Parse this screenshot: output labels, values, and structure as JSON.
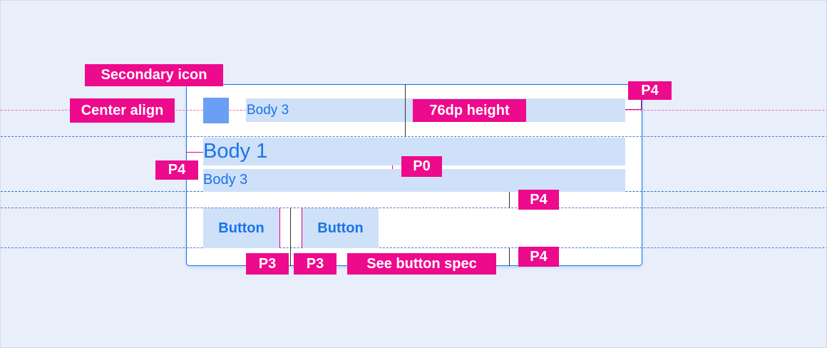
{
  "card": {
    "header_text": "Body 3",
    "title": "Body 1",
    "subtitle": "Body 3",
    "buttons": [
      "Button",
      "Button"
    ]
  },
  "annotations": {
    "secondary_icon": "Secondary icon",
    "center_align": "Center align",
    "height": "76dp height",
    "p4_top": "P4",
    "p4_left": "P4",
    "p0": "P0",
    "p4_mid": "P4",
    "p4_bottom": "P4",
    "p3_a": "P3",
    "p3_b": "P3",
    "button_spec": "See button spec"
  },
  "colors": {
    "accent": "#1a73e8",
    "annotation": "#ee0a8c",
    "icon": "#6b9ff5",
    "highlight": "#cfe0f9",
    "background": "#e8effb"
  }
}
